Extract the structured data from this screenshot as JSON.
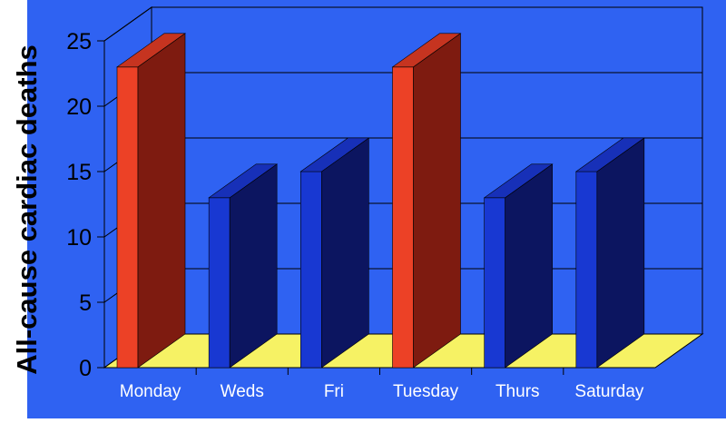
{
  "chart_data": {
    "type": "bar",
    "style": "3d",
    "title": "",
    "xlabel": "",
    "ylabel": "All-cause cardiac deaths",
    "categories": [
      "Monday",
      "Weds",
      "Fri",
      "Tuesday",
      "Thurs",
      "Saturday"
    ],
    "values": [
      23,
      13,
      15,
      23,
      13,
      15
    ],
    "ylim": [
      0,
      25
    ],
    "yticks": [
      "0",
      "5",
      "10",
      "15",
      "20",
      "25"
    ],
    "grid": true,
    "legend": "none"
  },
  "colors": {
    "background": "#2f62f2",
    "back_wall": "#2f62f2",
    "floor": "#f6f264",
    "highlight_front": "#ec4126",
    "highlight_side": "#7e1b10",
    "highlight_top": "#c63420",
    "normal_front": "#1838d2",
    "normal_side": "#0c1560",
    "normal_top": "#1730b8"
  },
  "highlighted_categories": [
    "Monday",
    "Tuesday"
  ]
}
